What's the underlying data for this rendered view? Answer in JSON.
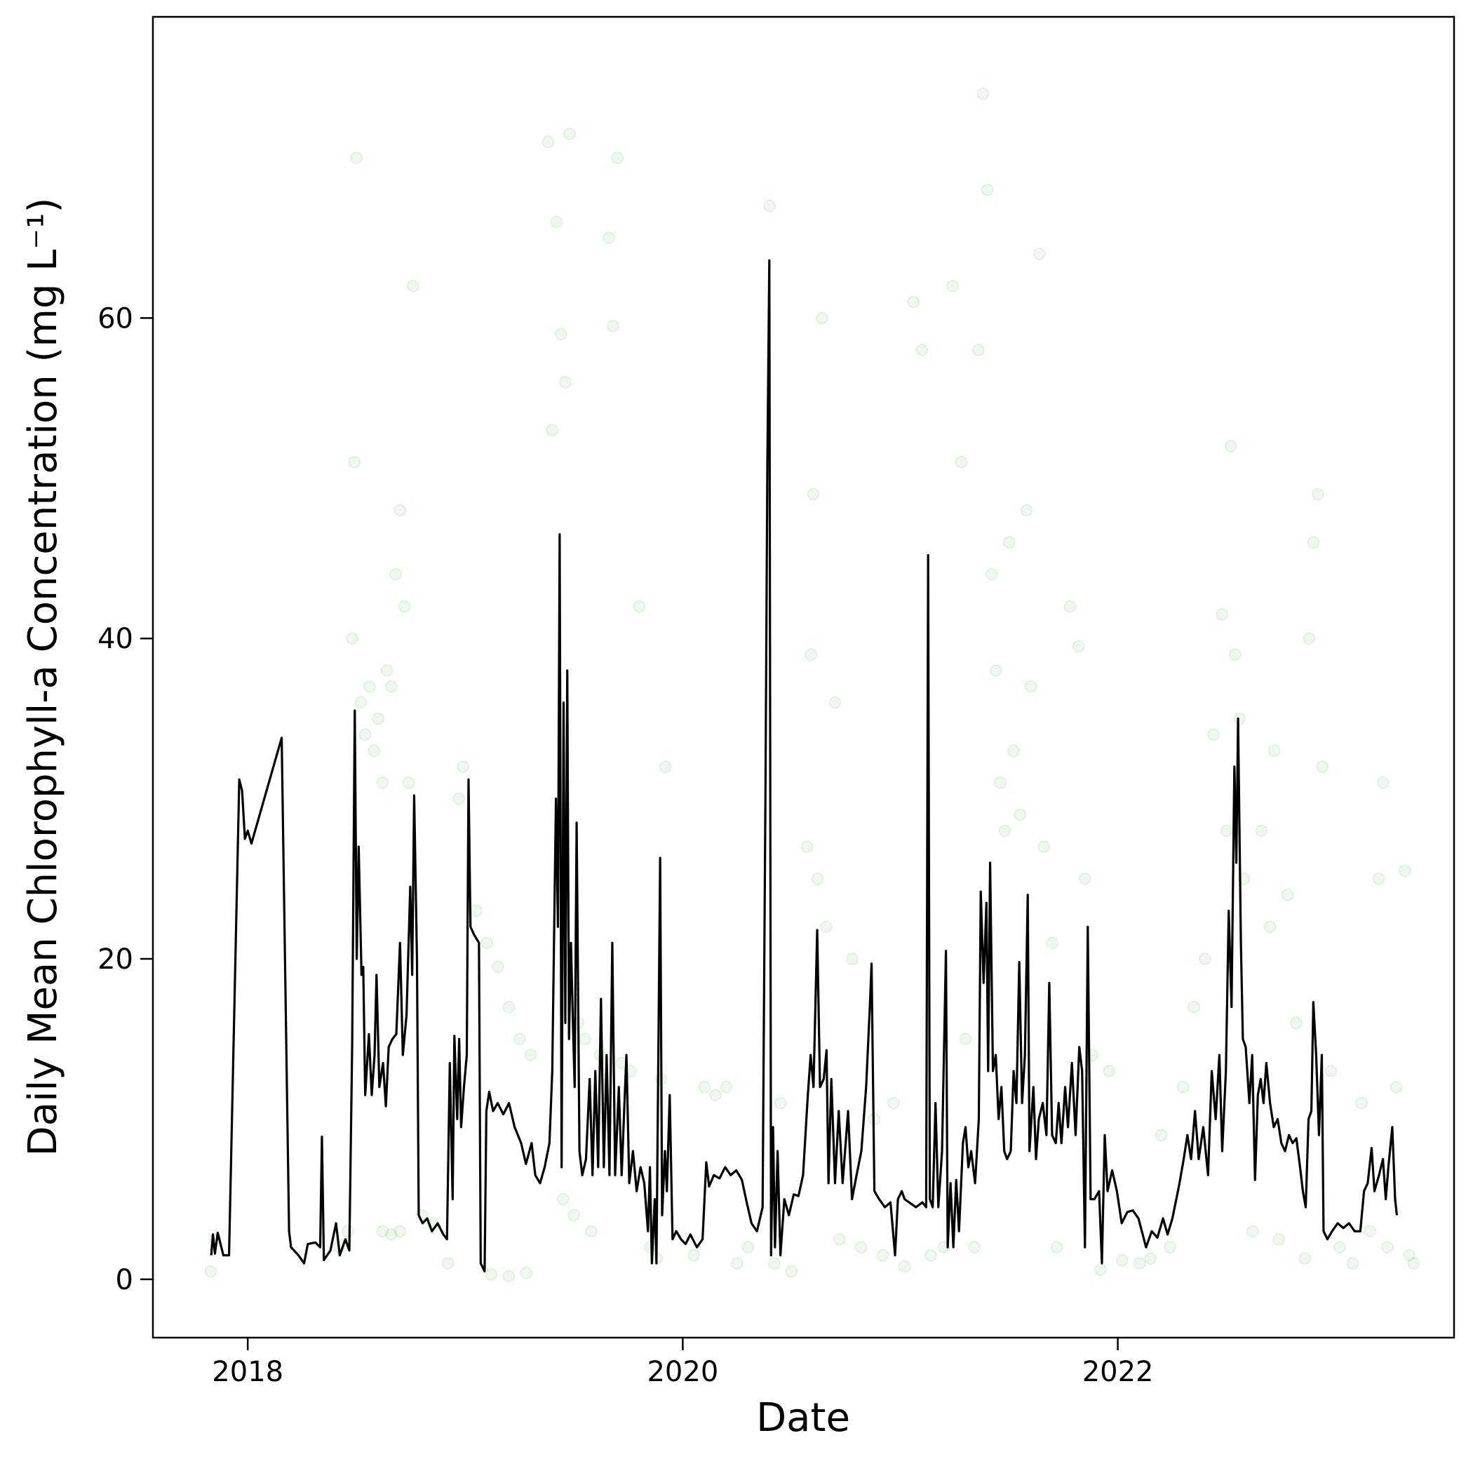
{
  "chart_data": {
    "type": "line",
    "xlabel": "Date",
    "ylabel": "Daily Mean Chlorophyll-a Concentration (mg L⁻¹)",
    "xlim": [
      2017.564,
      2023.546
    ],
    "ylim": [
      -3.64,
      78.8
    ],
    "xticks": [
      2018,
      2020,
      2022
    ],
    "yticks": [
      0,
      20,
      40,
      60
    ],
    "grid": false,
    "series": [
      {
        "type": "scatter",
        "color": "#2ca02c",
        "alpha": 0.08,
        "x": [
          2017.83,
          2017.85,
          2018.42,
          2018.46,
          2018.48,
          2018.49,
          2018.5,
          2018.52,
          2018.54,
          2018.56,
          2018.58,
          2018.6,
          2018.62,
          2018.64,
          2018.66,
          2018.68,
          2018.7,
          2018.72,
          2018.74,
          2018.76,
          2018.62,
          2018.66,
          2018.7,
          2018.8,
          2018.85,
          2018.92,
          2018.97,
          2018.99,
          2019.05,
          2019.1,
          2019.15,
          2019.2,
          2019.25,
          2019.3,
          2019.12,
          2019.2,
          2019.28,
          2019.38,
          2019.42,
          2019.44,
          2019.46,
          2019.48,
          2019.4,
          2019.45,
          2019.5,
          2019.52,
          2019.55,
          2019.58,
          2019.62,
          2019.66,
          2019.68,
          2019.7,
          2019.72,
          2019.76,
          2019.8,
          2019.85,
          2019.88,
          2019.9,
          2019.92,
          2020.1,
          2020.15,
          2020.2,
          2020.05,
          2020.25,
          2020.3,
          2020.4,
          2020.42,
          2020.45,
          2020.5,
          2020.57,
          2020.59,
          2020.6,
          2020.62,
          2020.64,
          2020.66,
          2020.7,
          2020.72,
          2020.78,
          2020.82,
          2020.88,
          2020.92,
          2020.97,
          2021.02,
          2021.06,
          2021.1,
          2021.14,
          2021.2,
          2021.24,
          2021.28,
          2021.3,
          2021.34,
          2021.36,
          2021.38,
          2021.4,
          2021.42,
          2021.44,
          2021.46,
          2021.48,
          2021.5,
          2021.52,
          2021.55,
          2021.58,
          2021.6,
          2021.64,
          2021.66,
          2021.7,
          2021.72,
          2021.78,
          2021.82,
          2021.85,
          2021.88,
          2021.92,
          2021.96,
          2022.02,
          2022.1,
          2022.15,
          2022.2,
          2022.24,
          2022.3,
          2022.35,
          2022.4,
          2022.44,
          2022.48,
          2022.5,
          2022.52,
          2022.54,
          2022.56,
          2022.58,
          2022.62,
          2022.66,
          2022.7,
          2022.72,
          2022.74,
          2022.78,
          2022.82,
          2022.86,
          2022.88,
          2022.9,
          2022.92,
          2022.94,
          2022.98,
          2023.02,
          2023.08,
          2023.12,
          2023.16,
          2023.2,
          2023.22,
          2023.24,
          2023.28,
          2023.32,
          2023.34,
          2023.36
        ],
        "values": [
          0.5,
          2.5,
          2,
          3,
          40,
          51,
          70,
          36,
          34,
          37,
          33,
          35,
          31,
          38,
          37,
          44,
          48,
          42,
          31,
          62,
          3,
          2.8,
          3,
          4,
          3.5,
          1,
          30,
          32,
          23,
          21,
          19.5,
          17,
          15,
          14,
          0.3,
          0.2,
          0.4,
          71,
          66,
          59,
          56,
          71.5,
          53,
          5,
          4,
          16,
          15,
          3,
          14,
          65,
          59.5,
          70,
          13.5,
          13,
          42,
          2,
          1.3,
          12.5,
          32,
          12,
          11.5,
          12,
          1.5,
          1,
          2,
          67,
          1,
          11,
          0.5,
          27,
          39,
          49,
          25,
          60,
          22,
          36,
          2.5,
          20,
          2,
          10,
          1.5,
          11,
          0.8,
          61,
          58,
          1.5,
          2,
          62,
          51,
          15,
          2,
          58,
          74,
          68,
          44,
          38,
          31,
          28,
          46,
          33,
          29,
          48,
          37,
          64,
          27,
          21,
          2,
          42,
          39.5,
          25,
          14,
          0.6,
          13,
          1.2,
          1,
          1.3,
          9,
          2,
          12,
          17,
          20,
          34,
          41.5,
          28,
          52,
          39,
          35,
          25,
          3,
          28,
          22,
          33,
          2.5,
          24,
          16,
          1.3,
          40,
          46,
          49,
          32,
          13,
          2,
          1,
          11,
          3,
          25,
          31,
          2,
          12,
          25.5,
          1.5,
          1
        ]
      },
      {
        "type": "line",
        "color": "#000000",
        "x": [
          2017.832,
          2017.84,
          2017.849,
          2017.862,
          2017.875,
          2017.888,
          2017.914,
          2017.961,
          2017.974,
          2017.987,
          2018.0,
          2018.017,
          2018.156,
          2018.19,
          2018.199,
          2018.233,
          2018.259,
          2018.276,
          2018.311,
          2018.333,
          2018.341,
          2018.35,
          2018.38,
          2018.406,
          2018.423,
          2018.449,
          2018.467,
          2018.48,
          2018.492,
          2018.501,
          2018.51,
          2018.523,
          2018.531,
          2018.54,
          2018.557,
          2018.57,
          2018.583,
          2018.592,
          2018.605,
          2018.622,
          2018.635,
          2018.648,
          2018.665,
          2018.683,
          2018.7,
          2018.713,
          2018.73,
          2018.747,
          2018.756,
          2018.765,
          2018.778,
          2018.786,
          2018.804,
          2018.825,
          2018.847,
          2018.873,
          2018.899,
          2018.916,
          2018.929,
          2018.942,
          2018.95,
          2018.963,
          2018.972,
          2018.981,
          2018.994,
          2019.007,
          2019.015,
          2019.024,
          2019.041,
          2019.063,
          2019.071,
          2019.089,
          2019.097,
          2019.11,
          2019.128,
          2019.149,
          2019.175,
          2019.201,
          2019.227,
          2019.257,
          2019.279,
          2019.305,
          2019.322,
          2019.344,
          2019.365,
          2019.387,
          2019.4,
          2019.417,
          2019.426,
          2019.434,
          2019.443,
          2019.452,
          2019.46,
          2019.469,
          2019.477,
          2019.486,
          2019.495,
          2019.503,
          2019.512,
          2019.525,
          2019.538,
          2019.555,
          2019.572,
          2019.585,
          2019.598,
          2019.611,
          2019.624,
          2019.637,
          2019.65,
          2019.663,
          2019.676,
          2019.689,
          2019.706,
          2019.719,
          2019.732,
          2019.741,
          2019.754,
          2019.771,
          2019.788,
          2019.806,
          2019.823,
          2019.84,
          2019.849,
          2019.858,
          2019.871,
          2019.879,
          2019.896,
          2019.905,
          2019.918,
          2019.927,
          2019.94,
          2019.953,
          2019.97,
          2019.992,
          2020.013,
          2020.035,
          2020.065,
          2020.091,
          2020.108,
          2020.121,
          2020.143,
          2020.169,
          2020.195,
          2020.22,
          2020.246,
          2020.272,
          2020.294,
          2020.316,
          2020.341,
          2020.367,
          2020.38,
          2020.389,
          2020.398,
          2020.406,
          2020.415,
          2020.424,
          2020.436,
          2020.449,
          2020.467,
          2020.488,
          2020.51,
          2020.532,
          2020.553,
          2020.575,
          2020.588,
          2020.601,
          2020.618,
          2020.631,
          2020.648,
          2020.661,
          2020.67,
          2020.683,
          2020.7,
          2020.717,
          2020.735,
          2020.76,
          2020.778,
          2020.799,
          2020.821,
          2020.843,
          2020.86,
          2020.868,
          2020.881,
          2020.903,
          2020.929,
          2020.955,
          2020.976,
          2020.989,
          2021.007,
          2021.02,
          2021.041,
          2021.072,
          2021.102,
          2021.119,
          2021.128,
          2021.136,
          2021.149,
          2021.162,
          2021.175,
          2021.192,
          2021.21,
          2021.218,
          2021.231,
          2021.244,
          2021.257,
          2021.27,
          2021.288,
          2021.3,
          2021.313,
          2021.326,
          2021.344,
          2021.361,
          2021.37,
          2021.383,
          2021.396,
          2021.404,
          2021.413,
          2021.426,
          2021.439,
          2021.452,
          2021.465,
          2021.478,
          2021.491,
          2021.508,
          2021.521,
          2021.534,
          2021.547,
          2021.56,
          2021.573,
          2021.586,
          2021.594,
          2021.612,
          2021.624,
          2021.637,
          2021.655,
          2021.672,
          2021.685,
          2021.698,
          2021.715,
          2021.728,
          2021.741,
          2021.758,
          2021.771,
          2021.789,
          2021.806,
          2021.823,
          2021.836,
          2021.849,
          2021.862,
          2021.875,
          2021.892,
          2021.914,
          2021.927,
          2021.94,
          2021.953,
          2021.974,
          2021.996,
          2022.018,
          2022.044,
          2022.069,
          2022.095,
          2022.13,
          2022.156,
          2022.182,
          2022.208,
          2022.229,
          2022.251,
          2022.281,
          2022.303,
          2022.32,
          2022.337,
          2022.355,
          2022.372,
          2022.393,
          2022.415,
          2022.432,
          2022.45,
          2022.467,
          2022.48,
          2022.497,
          2022.51,
          2022.523,
          2022.536,
          2022.545,
          2022.553,
          2022.566,
          2022.575,
          2022.588,
          2022.605,
          2022.618,
          2022.631,
          2022.644,
          2022.657,
          2022.67,
          2022.683,
          2022.7,
          2022.717,
          2022.735,
          2022.752,
          2022.769,
          2022.787,
          2022.804,
          2022.821,
          2022.838,
          2022.851,
          2022.864,
          2022.877,
          2022.89,
          2022.899,
          2022.912,
          2022.925,
          2022.938,
          2022.946,
          2022.964,
          2022.985,
          2023.011,
          2023.037,
          2023.063,
          2023.089,
          2023.115,
          2023.132,
          2023.149,
          2023.167,
          2023.18,
          2023.201,
          2023.219,
          2023.232,
          2023.244,
          2023.262,
          2023.275,
          2023.283
        ],
        "values": [
          1.5,
          2.8,
          1.6,
          2.9,
          2.2,
          1.5,
          1.5,
          31.2,
          30.5,
          27.5,
          28,
          27.2,
          33.8,
          3,
          2,
          1.5,
          1,
          2.2,
          2.3,
          2,
          8.9,
          1.2,
          1.8,
          3.5,
          1.5,
          2.5,
          1.8,
          14.5,
          35.5,
          20,
          27,
          19,
          19.5,
          11.5,
          15.3,
          11.5,
          14,
          19,
          12,
          13.5,
          10.8,
          14.5,
          15,
          15.3,
          21,
          14,
          16.5,
          24.5,
          19,
          30.2,
          20,
          4,
          3.5,
          3.8,
          3,
          3.5,
          2.8,
          2.5,
          13.5,
          5,
          15.2,
          10,
          15,
          9.5,
          12,
          14,
          31.2,
          22,
          21.5,
          21,
          1,
          0.5,
          10.5,
          11.7,
          10.5,
          11,
          10.3,
          11,
          9.5,
          8.5,
          7.2,
          8.5,
          6.5,
          6,
          7,
          8.5,
          13,
          30,
          22,
          46.5,
          7,
          36,
          16,
          38,
          15,
          21,
          16,
          12,
          28.5,
          8,
          6.5,
          7.5,
          12.5,
          6.5,
          13,
          7,
          17.5,
          7,
          14,
          6.5,
          21,
          6.5,
          12,
          6.5,
          11,
          14,
          6,
          8,
          5.5,
          7,
          6,
          3,
          7,
          1,
          5,
          1,
          26.3,
          4,
          8,
          5.5,
          11.5,
          2.5,
          3,
          2.5,
          2.2,
          2.8,
          2,
          2.5,
          7.3,
          5.8,
          6.5,
          6.3,
          7,
          6.5,
          6.8,
          6.2,
          4.8,
          3.5,
          3,
          4.5,
          30,
          51,
          63.6,
          1.5,
          9.5,
          2,
          8,
          1.5,
          5,
          4,
          5.3,
          5.2,
          6.5,
          11.5,
          14,
          12,
          21.8,
          12,
          12.5,
          14.3,
          6,
          12.5,
          6,
          10.5,
          6,
          10.5,
          5,
          6.5,
          8,
          12,
          17,
          19.7,
          5.5,
          5,
          4.5,
          4.8,
          1.5,
          5,
          5.5,
          5,
          4.8,
          4.5,
          4.8,
          4.5,
          45.2,
          5,
          4.5,
          11,
          4.5,
          8,
          20.5,
          2,
          6,
          2,
          6.2,
          3,
          8.5,
          9.5,
          7,
          8,
          6,
          10,
          24.2,
          18.5,
          23.5,
          13,
          26,
          13,
          14,
          10,
          12,
          8,
          7.5,
          8,
          13,
          11,
          19.8,
          11,
          14,
          24,
          8,
          12,
          7.5,
          10,
          11,
          9,
          18.5,
          9,
          8.5,
          11,
          8.5,
          12,
          9.5,
          13.5,
          9,
          14.5,
          13,
          2,
          22,
          5,
          5,
          5.5,
          1,
          9,
          5.5,
          6.8,
          5.5,
          3.5,
          4.2,
          4.3,
          3.8,
          2,
          3,
          2.6,
          3.8,
          2.8,
          3.8,
          5.8,
          7.5,
          9,
          7.5,
          10.5,
          7.5,
          9.5,
          6.5,
          13,
          10,
          14,
          8,
          13,
          23,
          17,
          32,
          26,
          35,
          21,
          15,
          14.5,
          11,
          14,
          6.2,
          11.5,
          12.5,
          11,
          13.5,
          11,
          9.5,
          10,
          8.5,
          8,
          9,
          8.5,
          8.8,
          7,
          5.5,
          4.5,
          10,
          10.5,
          17.3,
          14,
          9,
          14,
          3,
          2.5,
          3,
          3.5,
          3.2,
          3.5,
          3,
          3,
          5.5,
          6,
          8.2,
          5.5,
          6.5,
          7.5,
          5,
          7,
          9.5,
          5,
          4
        ]
      }
    ]
  }
}
